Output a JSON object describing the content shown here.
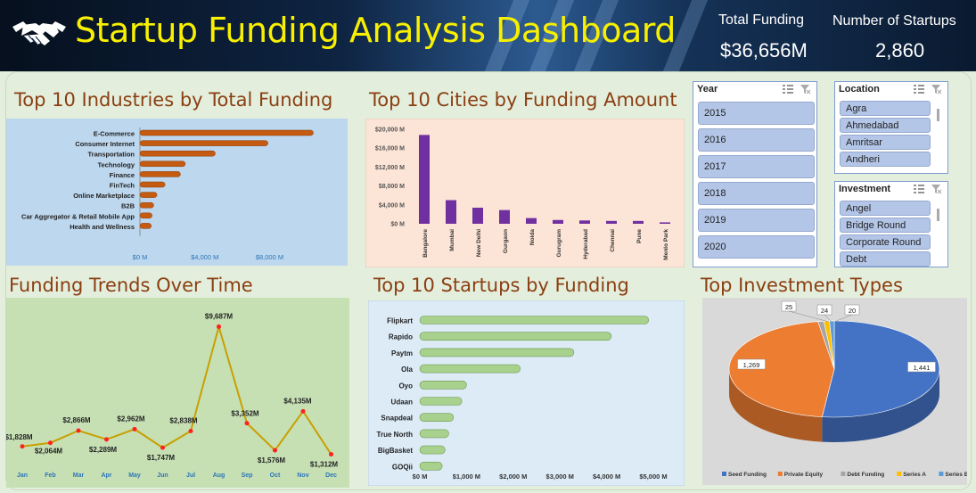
{
  "header": {
    "title": "Startup Funding Analysis Dashboard",
    "kpis": [
      {
        "label": "Total Funding",
        "value": "$36,656M"
      },
      {
        "label": "Number of Startups",
        "value": "2,860"
      }
    ]
  },
  "sections": {
    "industries": "Top 10 Industries by Total Funding",
    "cities": "Top 10 Cities by Funding Amount",
    "trends": "Funding Trends Over Time",
    "startups": "Top 10 Startups by Funding",
    "investment": "Top Investment Types"
  },
  "slicers": {
    "year": {
      "title": "Year",
      "items": [
        "2015",
        "2016",
        "2017",
        "2018",
        "2019",
        "2020"
      ]
    },
    "location": {
      "title": "Location",
      "items": [
        "Agra",
        "Ahmedabad",
        "Amritsar",
        "Andheri"
      ]
    },
    "investment": {
      "title": "Investment",
      "items": [
        "Angel",
        "Bridge Round",
        "Corporate Round",
        "Debt"
      ]
    }
  },
  "chart_data": [
    {
      "id": "industries",
      "type": "bar",
      "orientation": "horizontal",
      "categories": [
        "E-Commerce",
        "Consumer Internet",
        "Transportation",
        "Technology",
        "Finance",
        "FinTech",
        "Online Marketplace",
        "B2B",
        "Car Aggregator & Retail Mobile App",
        "Health and Wellness"
      ],
      "values": [
        10700,
        7900,
        4650,
        2800,
        2500,
        1550,
        1050,
        850,
        750,
        700
      ],
      "ticks": [
        "$0 M",
        "$4,000 M",
        "$8,000 M"
      ],
      "xlim": [
        0,
        11000
      ],
      "color": "#c55a11",
      "background": "#bdd7ee"
    },
    {
      "id": "cities",
      "type": "bar",
      "categories": [
        "Bangalore",
        "Mumbai",
        "New Delhi",
        "Gurgaon",
        "Noida",
        "Gurugram",
        "Hyderabad",
        "Chennai",
        "Pune",
        "Menlo Park"
      ],
      "values": [
        18800,
        5000,
        3400,
        2900,
        1200,
        800,
        700,
        600,
        600,
        300
      ],
      "ticks": [
        "$0 M",
        "$4,000 M",
        "$8,000 M",
        "$12,000 M",
        "$16,000 M",
        "$20,000 M"
      ],
      "ylim": [
        0,
        20000
      ],
      "color": "#7030a0",
      "background": "#fce4d6"
    },
    {
      "id": "trends",
      "type": "line",
      "categories": [
        "Jan",
        "Feb",
        "Mar",
        "Apr",
        "May",
        "Jun",
        "Jul",
        "Aug",
        "Sep",
        "Oct",
        "Nov",
        "Dec"
      ],
      "values": [
        1828,
        2064,
        2866,
        2289,
        2962,
        1747,
        2838,
        9687,
        3352,
        1576,
        4135,
        1312
      ],
      "labels": [
        "$1,828M",
        "$2,064M",
        "$2,866M",
        "$2,289M",
        "$2,962M",
        "$1,747M",
        "$2,838M",
        "$9,687M",
        "$3,352M",
        "$1,576M",
        "$4,135M",
        "$1,312M"
      ],
      "ylim": [
        0,
        11000
      ],
      "color": "#c8a000",
      "marker_color": "#ff2020",
      "background": "#c6e0b4"
    },
    {
      "id": "startups",
      "type": "bar",
      "orientation": "horizontal",
      "categories": [
        "Flipkart",
        "Rapido",
        "Paytm",
        "Ola",
        "Oyo",
        "Udaan",
        "Snapdeal",
        "True North",
        "BigBasket",
        "GOQii"
      ],
      "values": [
        4900,
        4100,
        3300,
        2150,
        1000,
        900,
        720,
        620,
        540,
        480
      ],
      "ticks": [
        "$0 M",
        "$1,000 M",
        "$2,000 M",
        "$3,000 M",
        "$4,000 M",
        "$5,000 M"
      ],
      "xlim": [
        0,
        5000
      ],
      "color": "#a9d18e",
      "background": "#ddebf7"
    },
    {
      "id": "investment",
      "type": "pie",
      "categories": [
        "Seed Funding",
        "Private Equity",
        "Debt Funding",
        "Series A",
        "Series B"
      ],
      "values": [
        1441,
        1269,
        25,
        24,
        20
      ],
      "labels": [
        "1,441",
        "1,269",
        "25",
        "24",
        "20"
      ],
      "colors": [
        "#4472c4",
        "#ed7d31",
        "#a5a5a5",
        "#ffc000",
        "#5b9bd5"
      ],
      "legend": "bottom",
      "background": "#d9d9d9"
    }
  ]
}
